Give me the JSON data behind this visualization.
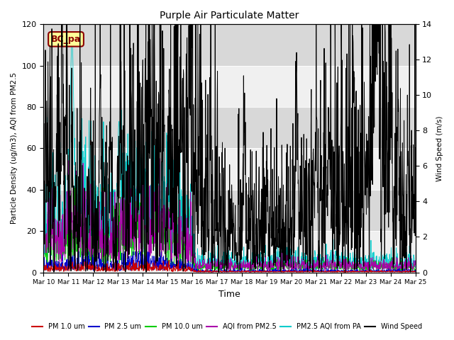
{
  "title": "Purple Air Particulate Matter",
  "xlabel": "Time",
  "ylabel_left": "Particle Density (ug/m3), AQI from PM2.5",
  "ylabel_right": "Wind Speed (m/s)",
  "annotation_text": "BC_pa",
  "annotation_color": "#8B0000",
  "annotation_bg": "#FFFF99",
  "ylim_left": [
    0,
    120
  ],
  "ylim_right": [
    0,
    14
  ],
  "yticks_left": [
    0,
    20,
    40,
    60,
    80,
    100,
    120
  ],
  "yticks_right": [
    0,
    2,
    4,
    6,
    8,
    10,
    12,
    14
  ],
  "x_tick_labels": [
    "Mar 10",
    "Mar 11",
    "Mar 12",
    "Mar 13",
    "Mar 14",
    "Mar 15",
    "Mar 16",
    "Mar 17",
    "Mar 18",
    "Mar 19",
    "Mar 20",
    "Mar 21",
    "Mar 22",
    "Mar 23",
    "Mar 24",
    "Mar 25"
  ],
  "colors": {
    "PM1": "#cc0000",
    "PM25": "#0000cc",
    "PM10": "#00cc00",
    "AQI_PM25": "#aa00aa",
    "AQI_PA": "#00cccc",
    "Wind": "#000000"
  },
  "legend_labels": [
    "PM 1.0 um",
    "PM 2.5 um",
    "PM 10.0 um",
    "AQI from PM2.5",
    "PM2.5 AQI from PA",
    "Wind Speed"
  ],
  "bg_light": "#f0f0f0",
  "bg_dark": "#d8d8d8",
  "num_points": 1440
}
